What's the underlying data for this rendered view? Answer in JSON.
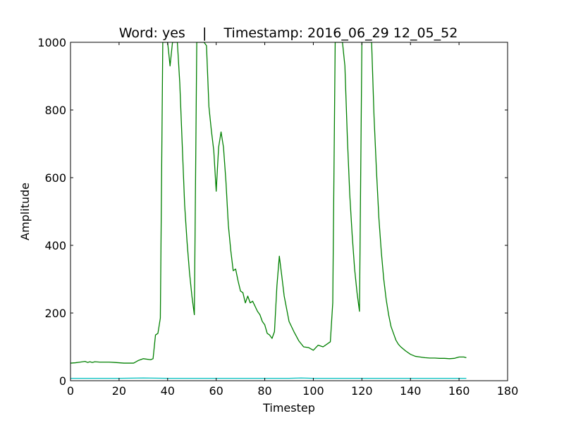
{
  "chart_data": {
    "type": "line",
    "title": "Word: yes    |    Timestamp: 2016_06_29 12_05_52",
    "xlabel": "Timestep",
    "ylabel": "Amplitude",
    "xlim": [
      0,
      180
    ],
    "ylim": [
      0,
      1000
    ],
    "xticks": [
      0,
      20,
      40,
      60,
      80,
      100,
      120,
      140,
      160,
      180
    ],
    "yticks": [
      0,
      200,
      400,
      600,
      800,
      1000
    ],
    "grid": false,
    "legend": "none",
    "series": [
      {
        "color": "#008000",
        "x": [
          0,
          2,
          4,
          6,
          7,
          8,
          9,
          10,
          12,
          14,
          16,
          18,
          20,
          22,
          24,
          26,
          28,
          30,
          32,
          33,
          34,
          35,
          36,
          37,
          38,
          39,
          40,
          41,
          42,
          43,
          44,
          45,
          46,
          47,
          48,
          49,
          50,
          51,
          52,
          53,
          54,
          55,
          56,
          57,
          58,
          59,
          60,
          61,
          62,
          63,
          64,
          65,
          66,
          67,
          68,
          69,
          70,
          71,
          72,
          73,
          74,
          75,
          76,
          77,
          78,
          79,
          80,
          81,
          82,
          83,
          84,
          85,
          86,
          87,
          88,
          90,
          92,
          94,
          96,
          98,
          100,
          102,
          104,
          106,
          107,
          108,
          109,
          110,
          111,
          112,
          113,
          114,
          115,
          116,
          117,
          118,
          119,
          120,
          121,
          122,
          123,
          124,
          125,
          126,
          127,
          128,
          129,
          130,
          131,
          132,
          133,
          134,
          135,
          136,
          138,
          140,
          142,
          144,
          146,
          148,
          150,
          152,
          154,
          156,
          158,
          160,
          162,
          163
        ],
        "y": [
          52,
          53,
          55,
          57,
          54,
          56,
          54,
          56,
          55,
          55,
          55,
          54,
          53,
          52,
          52,
          52,
          60,
          65,
          63,
          62,
          65,
          135,
          140,
          185,
          1000,
          1000,
          1000,
          930,
          1000,
          1000,
          1000,
          880,
          700,
          520,
          410,
          320,
          250,
          195,
          1000,
          1000,
          1000,
          1000,
          990,
          810,
          740,
          680,
          560,
          690,
          735,
          690,
          590,
          460,
          385,
          325,
          330,
          295,
          265,
          260,
          230,
          250,
          230,
          235,
          220,
          205,
          195,
          175,
          165,
          140,
          135,
          125,
          145,
          280,
          368,
          310,
          250,
          175,
          145,
          118,
          100,
          98,
          90,
          105,
          100,
          110,
          115,
          230,
          1000,
          1000,
          1000,
          1000,
          930,
          720,
          550,
          430,
          330,
          260,
          205,
          1000,
          1000,
          1000,
          1000,
          1000,
          780,
          620,
          480,
          380,
          300,
          240,
          195,
          160,
          140,
          120,
          108,
          100,
          88,
          78,
          72,
          70,
          68,
          67,
          67,
          66,
          66,
          65,
          66,
          70,
          70,
          68
        ]
      },
      {
        "color": "#00bfbf",
        "x": [
          0,
          10,
          20,
          30,
          40,
          50,
          60,
          70,
          80,
          90,
          95,
          100,
          110,
          120,
          130,
          140,
          150,
          160,
          163
        ],
        "y": [
          7,
          7,
          7,
          8,
          7,
          7,
          7,
          7,
          7,
          7,
          8,
          7,
          7,
          7,
          7,
          7,
          7,
          7,
          7
        ]
      }
    ]
  }
}
